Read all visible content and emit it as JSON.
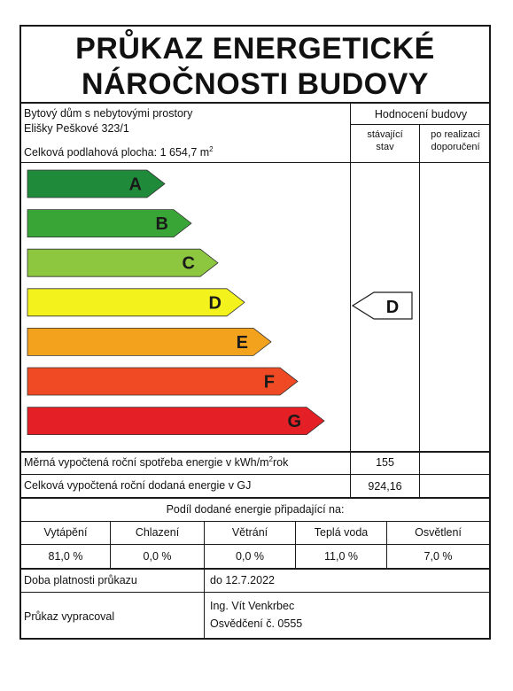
{
  "title": {
    "line1": "PRŮKAZ ENERGETICKÉ",
    "line2": "NÁROČNOSTI BUDOVY"
  },
  "building": {
    "type": "Bytový dům s nebytovými prostory",
    "address": "Elišky Peškové 323/1",
    "area_label": "Celková podlahová plocha: 1 654,7 m",
    "area_sup": "2"
  },
  "rating": {
    "header": "Hodnocení budovy",
    "current_line1": "stávající",
    "current_line2": "stav",
    "after_line1": "po realizaci",
    "after_line2": "doporučení",
    "current_class": "D",
    "classes": [
      {
        "letter": "A",
        "color": "#1f8a3a"
      },
      {
        "letter": "B",
        "color": "#3aa537"
      },
      {
        "letter": "C",
        "color": "#8dc63f"
      },
      {
        "letter": "D",
        "color": "#f4f21c"
      },
      {
        "letter": "E",
        "color": "#f3a21e"
      },
      {
        "letter": "F",
        "color": "#ef4a24"
      },
      {
        "letter": "G",
        "color": "#e51f26"
      }
    ]
  },
  "metrics": {
    "specific_label_a": "Měrná vypočtená roční spotřeba energie v kWh/m",
    "specific_sup": "2",
    "specific_label_b": "rok",
    "specific_value": "155",
    "total_label": "Celková vypočtená roční dodaná energie v GJ",
    "total_value": "924,16"
  },
  "share": {
    "header": "Podíl dodané energie připadající na:",
    "columns": [
      {
        "label": "Vytápění",
        "value": "81,0 %"
      },
      {
        "label": "Chlazení",
        "value": "0,0 %"
      },
      {
        "label": "Větrání",
        "value": "0,0 %"
      },
      {
        "label": "Teplá voda",
        "value": "11,0 %"
      },
      {
        "label": "Osvětlení",
        "value": "7,0 %"
      }
    ]
  },
  "validity": {
    "label": "Doba platnosti průkazu",
    "value": "do 12.7.2022"
  },
  "author": {
    "label": "Průkaz vypracoval",
    "name": "Ing. Vít Venkrbec",
    "certificate": "Osvědčení č. 0555"
  }
}
